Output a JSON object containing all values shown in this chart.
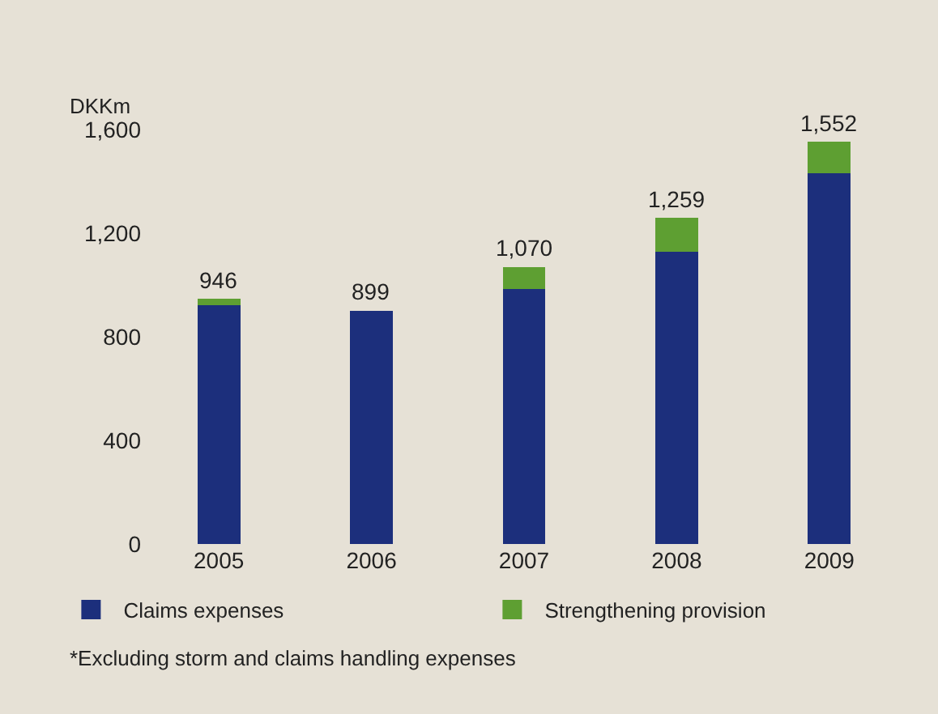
{
  "chart_data": {
    "type": "bar",
    "stacked": true,
    "ylabel": "DKKm",
    "categories": [
      "2005",
      "2006",
      "2007",
      "2008",
      "2009"
    ],
    "series": [
      {
        "name": "Claims expenses",
        "color": "#1c2f7c",
        "values": [
          922,
          899,
          984,
          1129,
          1430
        ]
      },
      {
        "name": "Strengthening provision",
        "color": "#5e9f32",
        "values": [
          24,
          0,
          86,
          130,
          122
        ]
      }
    ],
    "totals": [
      "946",
      "899",
      "1,070",
      "1,259",
      "1,552"
    ],
    "ylim": [
      0,
      1600
    ],
    "yticks": [
      0,
      400,
      800,
      {
        "value": 1200,
        "label": "1,200"
      },
      {
        "value": 1600,
        "label": "1,600"
      }
    ],
    "grid": false,
    "legend": "bottom",
    "annotations": [
      "*Excluding storm and claims handling expenses"
    ]
  }
}
